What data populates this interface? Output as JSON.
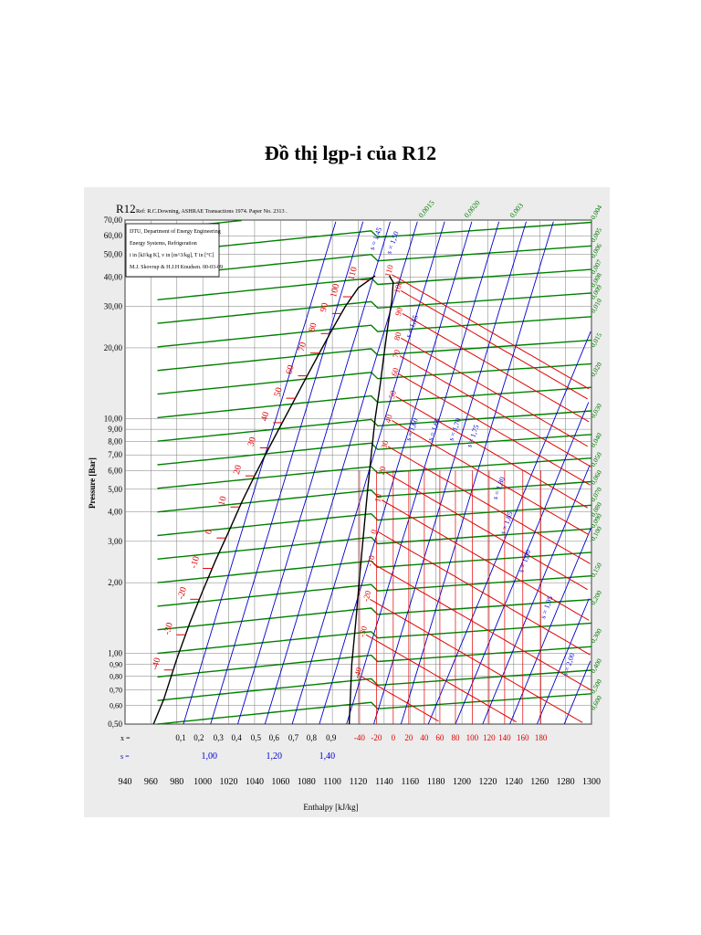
{
  "page": {
    "title": "Đồ thị lgp-i của R12"
  },
  "chart_data": {
    "type": "line",
    "chart_subject": "R12",
    "reference": "Ref: R.C.Downing, ASHRAE Transactions 1974. Paper No. 2313 .",
    "info_box": [
      "DTU, Department of Energy Engineering",
      "Energy Systems, Refrigeration",
      "i in [kJ/kg K], v in [m^3/kg], T in [°C]",
      "M.J. Skovrup & H.J.H Knudsen. 00-03-09"
    ],
    "xlabel": "Enthalpy [kJ/kg]",
    "ylabel": "Pressure [Bar]",
    "x_scale": "linear",
    "y_scale": "log",
    "xlim": [
      940,
      1300
    ],
    "ylim": [
      0.5,
      70
    ],
    "x_ticks": [
      "940",
      "960",
      "980",
      "1000",
      "1020",
      "1040",
      "1060",
      "1080",
      "1100",
      "1120",
      "1140",
      "1160",
      "1180",
      "1200",
      "1220",
      "1240",
      "1260",
      "1280",
      "1300"
    ],
    "y_ticks": [
      {
        "label": "70,00",
        "value": 70
      },
      {
        "label": "60,00",
        "value": 60
      },
      {
        "label": "50,00",
        "value": 50
      },
      {
        "label": "40,00",
        "value": 40
      },
      {
        "label": "30,00",
        "value": 30
      },
      {
        "label": "20,00",
        "value": 20
      },
      {
        "label": "10,00",
        "value": 10
      },
      {
        "label": "9,00",
        "value": 9
      },
      {
        "label": "8,00",
        "value": 8
      },
      {
        "label": "7,00",
        "value": 7
      },
      {
        "label": "6,00",
        "value": 6
      },
      {
        "label": "5,00",
        "value": 5
      },
      {
        "label": "4,00",
        "value": 4
      },
      {
        "label": "3,00",
        "value": 3
      },
      {
        "label": "2,00",
        "value": 2
      },
      {
        "label": "1,00",
        "value": 1
      },
      {
        "label": "0,90",
        "value": 0.9
      },
      {
        "label": "0,80",
        "value": 0.8
      },
      {
        "label": "0,70",
        "value": 0.7
      },
      {
        "label": "0,60",
        "value": 0.6
      },
      {
        "label": "0,50",
        "value": 0.5
      }
    ],
    "x_quality_row": {
      "label": "x =",
      "values": [
        {
          "label": "0,1",
          "i": 983
        },
        {
          "label": "0,2",
          "i": 997
        },
        {
          "label": "0,3",
          "i": 1012
        },
        {
          "label": "0,4",
          "i": 1026
        },
        {
          "label": "0,5",
          "i": 1041
        },
        {
          "label": "0,6",
          "i": 1055
        },
        {
          "label": "0,7",
          "i": 1070
        },
        {
          "label": "0,8",
          "i": 1084
        },
        {
          "label": "0,9",
          "i": 1099
        }
      ]
    },
    "s_row": {
      "label": "s =",
      "values": [
        {
          "label": "1,00",
          "i": 1005
        },
        {
          "label": "1,20",
          "i": 1055
        },
        {
          "label": "1,40",
          "i": 1096
        }
      ]
    },
    "temp_row": {
      "values": [
        {
          "label": "-40",
          "i": 1121
        },
        {
          "label": "-20",
          "i": 1134
        },
        {
          "label": "0",
          "i": 1147
        },
        {
          "label": "20",
          "i": 1159
        },
        {
          "label": "40",
          "i": 1171
        },
        {
          "label": "60",
          "i": 1183
        },
        {
          "label": "80",
          "i": 1195
        },
        {
          "label": "100",
          "i": 1208
        },
        {
          "label": "120",
          "i": 1221
        },
        {
          "label": "140",
          "i": 1233
        },
        {
          "label": "160",
          "i": 1247
        },
        {
          "label": "180",
          "i": 1261
        }
      ]
    },
    "saturation_dome": {
      "liquid": [
        [
          962,
          0.5
        ],
        [
          970,
          0.64
        ],
        [
          980,
          0.95
        ],
        [
          990,
          1.35
        ],
        [
          1000,
          1.85
        ],
        [
          1010,
          2.5
        ],
        [
          1020,
          3.3
        ],
        [
          1030,
          4.4
        ],
        [
          1040,
          5.7
        ],
        [
          1050,
          7.3
        ],
        [
          1060,
          9.3
        ],
        [
          1070,
          11.8
        ],
        [
          1080,
          15
        ],
        [
          1090,
          19
        ],
        [
          1100,
          24
        ],
        [
          1110,
          30
        ],
        [
          1120,
          36
        ],
        [
          1133,
          40.5
        ]
      ],
      "vapor": [
        [
          1144,
          40.5
        ],
        [
          1147,
          38
        ],
        [
          1146,
          32
        ],
        [
          1143,
          25
        ],
        [
          1140,
          19
        ],
        [
          1137,
          14
        ],
        [
          1133,
          10
        ],
        [
          1130,
          7
        ],
        [
          1127,
          4.8
        ],
        [
          1124,
          3.2
        ],
        [
          1121,
          2.1
        ],
        [
          1118,
          1.35
        ],
        [
          1115,
          0.9
        ],
        [
          1113,
          0.5
        ]
      ]
    },
    "saturation_temperature_labels": [
      {
        "label": "-40",
        "p": 0.85
      },
      {
        "label": "-30",
        "p": 1.2
      },
      {
        "label": "-20",
        "p": 1.7
      },
      {
        "label": "-10",
        "p": 2.3
      },
      {
        "label": "0",
        "p": 3.1
      },
      {
        "label": "10",
        "p": 4.2
      },
      {
        "label": "20",
        "p": 5.7
      },
      {
        "label": "30",
        "p": 7.5
      },
      {
        "label": "40",
        "p": 9.6
      },
      {
        "label": "50",
        "p": 12.2
      },
      {
        "label": "60",
        "p": 15.2
      },
      {
        "label": "70",
        "p": 19
      },
      {
        "label": "80",
        "p": 23
      },
      {
        "label": "90",
        "p": 28
      },
      {
        "label": "100",
        "p": 33
      },
      {
        "label": "110",
        "p": 39
      }
    ],
    "isotherm_labels_vapor": [
      {
        "label": "110",
        "i": 1146,
        "p": 41
      },
      {
        "label": "100",
        "i": 1153,
        "p": 35
      },
      {
        "label": "90",
        "i": 1154,
        "p": 28
      },
      {
        "label": "80",
        "i": 1153,
        "p": 22
      },
      {
        "label": "70",
        "i": 1152,
        "p": 18.5
      },
      {
        "label": "60",
        "i": 1151,
        "p": 15.5
      },
      {
        "label": "50",
        "i": 1149,
        "p": 12.4
      },
      {
        "label": "40",
        "i": 1146,
        "p": 9.8
      },
      {
        "label": "30",
        "i": 1143,
        "p": 7.6
      },
      {
        "label": "20",
        "i": 1141,
        "p": 5.9
      },
      {
        "label": "10",
        "i": 1138,
        "p": 4.5
      },
      {
        "label": "0",
        "i": 1135,
        "p": 3.3
      },
      {
        "label": "-10",
        "i": 1132,
        "p": 2.4
      },
      {
        "label": "-20",
        "i": 1129,
        "p": 1.7
      },
      {
        "label": "-30",
        "i": 1126,
        "p": 1.2
      },
      {
        "label": "-40",
        "i": 1122,
        "p": 0.8
      }
    ],
    "isentrope_labels": [
      {
        "label": "s = 1,45",
        "i": 1132,
        "p": 52
      },
      {
        "label": "s = 1,50",
        "i": 1145,
        "p": 50
      },
      {
        "label": "s = 1,55",
        "i": 1160,
        "p": 22
      },
      {
        "label": "s = 1,60",
        "i": 1160,
        "p": 8
      },
      {
        "label": "s = 1,65",
        "i": 1177,
        "p": 8
      },
      {
        "label": "s = 1,70",
        "i": 1193,
        "p": 8
      },
      {
        "label": "s = 1,75",
        "i": 1207,
        "p": 7.5
      },
      {
        "label": "s = 1,80",
        "i": 1227,
        "p": 4.5
      },
      {
        "label": "s = 1,85",
        "i": 1233,
        "p": 3.2
      },
      {
        "label": "s = 1,90",
        "i": 1247,
        "p": 2.2
      },
      {
        "label": "s = 1,95",
        "i": 1264,
        "p": 1.4
      },
      {
        "label": "s = 2,00",
        "i": 1281,
        "p": 0.8
      }
    ],
    "specific_volume_right_labels": [
      {
        "label": "0,004",
        "p": 70
      },
      {
        "label": "0,005",
        "p": 56
      },
      {
        "label": "0,006",
        "p": 48
      },
      {
        "label": "0,007",
        "p": 41
      },
      {
        "label": "0,008",
        "p": 36
      },
      {
        "label": "0,009",
        "p": 32
      },
      {
        "label": "0,010",
        "p": 28
      },
      {
        "label": "0,015",
        "p": 20
      },
      {
        "label": "0,020",
        "p": 15
      },
      {
        "label": "0,030",
        "p": 10
      },
      {
        "label": "0,040",
        "p": 7.5
      },
      {
        "label": "0,050",
        "p": 6.2
      },
      {
        "label": "0,060",
        "p": 5.2
      },
      {
        "label": "0,070",
        "p": 4.4
      },
      {
        "label": "0,080",
        "p": 3.8
      },
      {
        "label": "0,090",
        "p": 3.4
      },
      {
        "label": "0,100",
        "p": 3.0
      },
      {
        "label": "0,150",
        "p": 2.1
      },
      {
        "label": "0,200",
        "p": 1.6
      },
      {
        "label": "0,300",
        "p": 1.1
      },
      {
        "label": "0,400",
        "p": 0.82
      },
      {
        "label": "0,500",
        "p": 0.67
      },
      {
        "label": "0,600",
        "p": 0.57
      }
    ],
    "specific_volume_top_labels": [
      "0,0015",
      "0,0020",
      "0,003"
    ],
    "colors": {
      "grid": "#7a7a7a",
      "dome": "#000000",
      "isotherm": "#e00000",
      "isentrope": "#0000cc",
      "isochore": "#008000",
      "background": "#ececec"
    },
    "grid": true
  }
}
